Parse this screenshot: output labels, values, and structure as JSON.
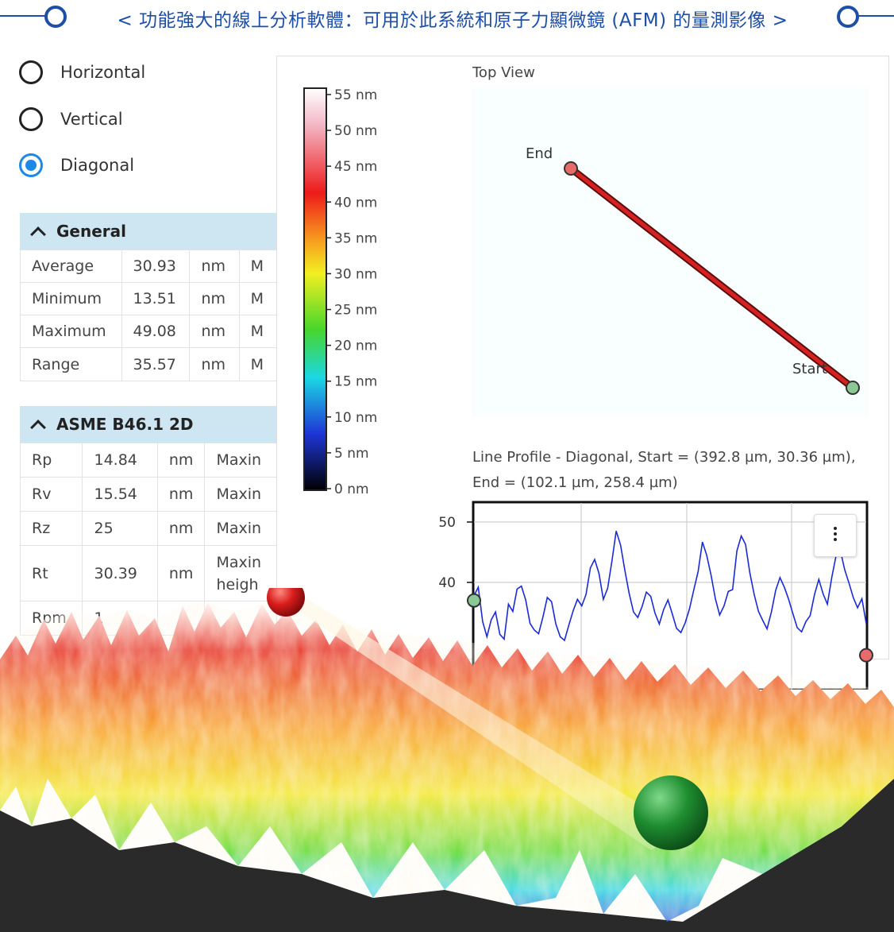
{
  "banner": {
    "title": "< 功能強大的線上分析軟體：可用於此系統和原子力顯微鏡 (AFM) 的量測影像 >",
    "accent_color": "#1d4fa8"
  },
  "direction_options": [
    {
      "label": "Horizontal",
      "selected": false
    },
    {
      "label": "Vertical",
      "selected": false
    },
    {
      "label": "Diagonal",
      "selected": true
    }
  ],
  "general": {
    "title": "General",
    "rows": [
      {
        "name": "Average",
        "value": "30.93",
        "unit": "nm",
        "extra": "M"
      },
      {
        "name": "Minimum",
        "value": "13.51",
        "unit": "nm",
        "extra": "M"
      },
      {
        "name": "Maximum",
        "value": "49.08",
        "unit": "nm",
        "extra": "M"
      },
      {
        "name": "Range",
        "value": "35.57",
        "unit": "nm",
        "extra": "M"
      }
    ]
  },
  "asme": {
    "title": "ASME B46.1 2D",
    "rows": [
      {
        "name": "Rp",
        "value": "14.84",
        "unit": "nm",
        "extra": "Maxin"
      },
      {
        "name": "Rv",
        "value": "15.54",
        "unit": "nm",
        "extra": "Maxin"
      },
      {
        "name": "Rz",
        "value": "25",
        "unit": "nm",
        "extra": "Maxin"
      },
      {
        "name": "Rt",
        "value": "30.39",
        "unit": "nm",
        "extra": "Maxin",
        "extra2": "heigh"
      },
      {
        "name": "Rpm",
        "value": "1",
        "unit": "",
        "extra": ""
      }
    ]
  },
  "viewer": {
    "colorbar": {
      "ticks": [
        "55 nm",
        "50 nm",
        "45 nm",
        "40 nm",
        "35 nm",
        "30 nm",
        "25 nm",
        "20 nm",
        "15 nm",
        "10 nm",
        "5 nm",
        "0 nm"
      ],
      "colors": [
        "#ffffff",
        "#f3b8c6",
        "#ee1a1a",
        "#f79f1f",
        "#f2ef21",
        "#47d62b",
        "#1bd7e3",
        "#1e35d6",
        "#000000"
      ]
    },
    "top_view": {
      "label": "Top View",
      "end_label": "End",
      "start_label": "Start",
      "line_color": "#c81e1e"
    },
    "profile": {
      "title_line1": "Line Profile - Diagonal, Start = (392.8 µm, 30.36 µm),",
      "title_line2": "End = (102.1 µm, 258.4 µm)",
      "y_ticks": [
        "50",
        "40"
      ],
      "line_color": "#1a2ad8"
    }
  },
  "chart_data": {
    "type": "line",
    "title": "Line Profile - Diagonal, Start = (392.8 µm, 30.36 µm), End = (102.1 µm, 258.4 µm)",
    "ylim": [
      29,
      52
    ],
    "y_ticks": [
      50,
      40
    ],
    "series": [
      {
        "values": [
          37.8,
          39.2,
          33.5,
          31.0,
          33.8,
          35.1,
          31.4,
          30.6,
          36.4,
          35.2,
          38.9,
          39.4,
          37.1,
          33.2,
          32.1,
          31.5,
          34.3,
          37.5,
          36.8,
          33.1,
          31.0,
          30.4,
          32.9,
          35.3,
          37.2,
          36.1,
          38.0,
          42.4,
          43.8,
          41.5,
          37.2,
          39.0,
          43.5,
          48.5,
          46.2,
          42.0,
          38.2,
          35.1,
          34.2,
          36.0,
          38.4,
          37.7,
          34.9,
          33.1,
          35.5,
          37.1,
          34.8,
          32.4,
          31.7,
          33.3,
          35.6,
          38.8,
          41.8,
          46.7,
          44.5,
          41.2,
          37.3,
          34.6,
          36.1,
          38.5,
          38.8,
          45.2,
          47.7,
          46.3,
          41.6,
          38.0,
          35.2,
          33.7,
          32.3,
          35.1,
          38.7,
          40.8,
          39.2,
          37.2,
          34.8,
          32.5,
          31.8,
          33.5,
          34.5,
          38.0,
          40.5,
          38.1,
          36.4,
          40.8,
          44.4,
          45.3,
          42.1,
          39.9,
          37.5,
          35.8,
          37.3,
          33.2
        ]
      }
    ]
  }
}
